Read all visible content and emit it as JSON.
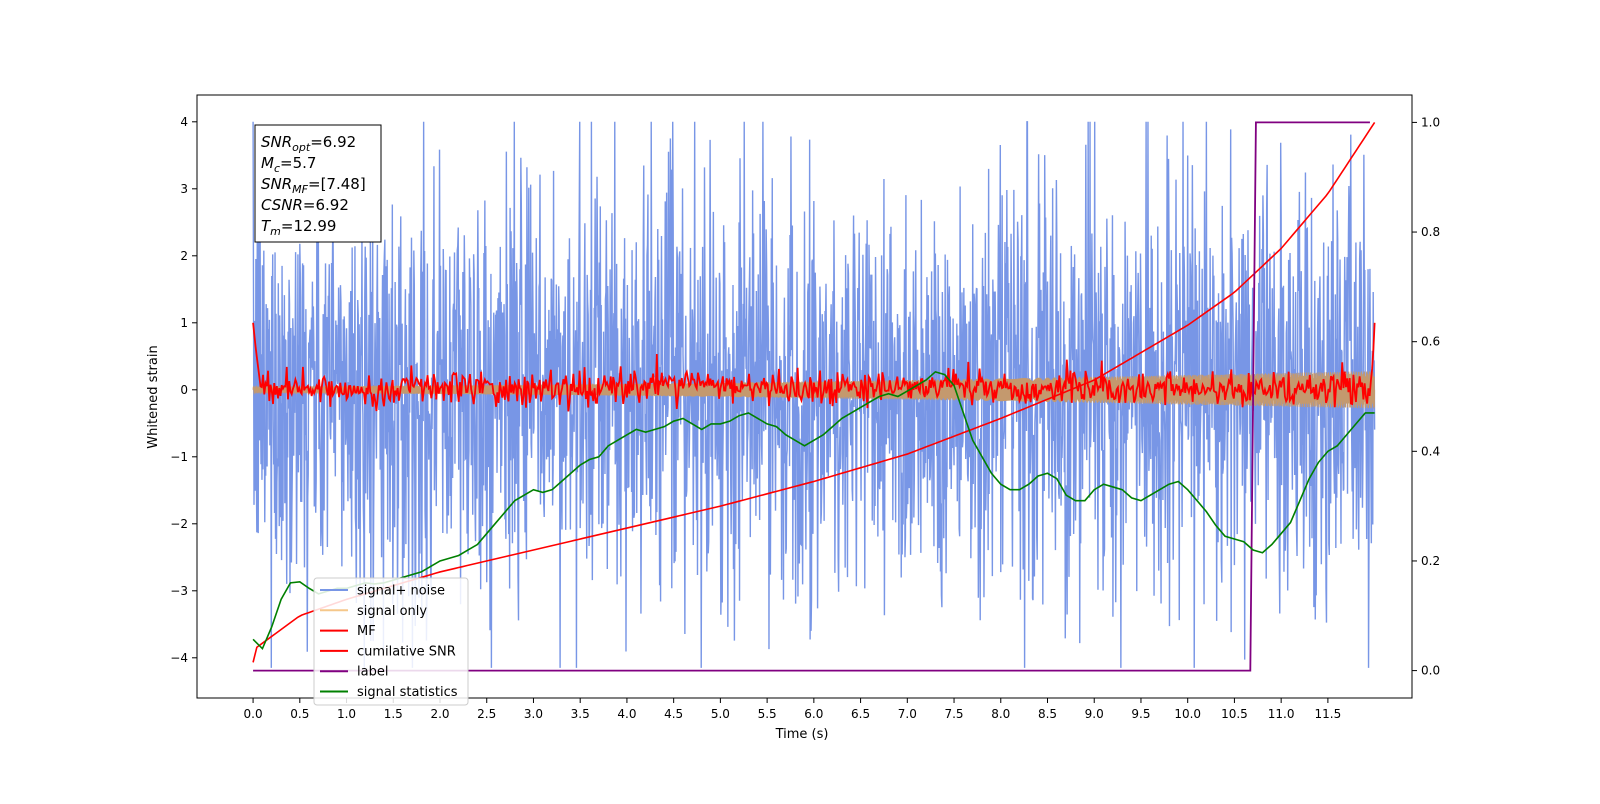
{
  "chart_data": {
    "type": "line",
    "xlabel": "Time (s)",
    "ylabel": "Whitened strain",
    "xlim": [
      -0.6,
      12.4
    ],
    "ylim": [
      -4.6,
      4.4
    ],
    "y2lim": [
      -0.05,
      1.05
    ],
    "xticks": [
      0.0,
      0.5,
      1.0,
      1.5,
      2.0,
      2.5,
      3.0,
      3.5,
      4.0,
      4.5,
      5.0,
      5.5,
      6.0,
      6.5,
      7.0,
      7.5,
      8.0,
      8.5,
      9.0,
      9.5,
      10.0,
      10.5,
      11.0,
      11.5
    ],
    "xtick_labels": [
      "0.0",
      "0.5",
      "1.0",
      "1.5",
      "2.0",
      "2.5",
      "3.0",
      "3.5",
      "4.0",
      "4.5",
      "5.0",
      "5.5",
      "6.0",
      "6.5",
      "7.0",
      "7.5",
      "8.0",
      "8.5",
      "9.0",
      "9.5",
      "10.0",
      "10.5",
      "11.0",
      "11.5"
    ],
    "yticks": [
      4,
      3,
      2,
      1,
      0,
      -1,
      -2,
      -3,
      -4
    ],
    "ytick_labels": [
      "4",
      "3",
      "2",
      "1",
      "0",
      "−1",
      "−2",
      "−3",
      "−4"
    ],
    "y2ticks": [
      1.0,
      0.8,
      0.6,
      0.4,
      0.2,
      0.0
    ],
    "y2tick_labels": [
      "1.0",
      "0.8",
      "0.6",
      "0.4",
      "0.2",
      "0.0"
    ],
    "legend_position": "lower-left",
    "grid": false,
    "annotation": {
      "lines": [
        {
          "base": "SNR",
          "sub": "opt",
          "value": "=6.92"
        },
        {
          "base": "M",
          "sub": "c",
          "value": "=5.7"
        },
        {
          "base": "SNR",
          "sub": "MF",
          "value": "=[7.48]"
        },
        {
          "base": "CSNR",
          "sub": "",
          "value": "=6.92"
        },
        {
          "base": "T",
          "sub": "m",
          "value": "=12.99"
        }
      ]
    },
    "series": [
      {
        "name": "signal+ noise",
        "color": "#7896e6",
        "axis": "left",
        "kind": "noise",
        "x_range": [
          0.0,
          12.0
        ],
        "y_range": [
          -4.15,
          4.0
        ],
        "typical_amplitude": 1.6
      },
      {
        "name": "signal only",
        "color": "#f5c78a",
        "band_color": "#c4996e",
        "axis": "left",
        "kind": "chirp-band",
        "x_range": [
          0.0,
          12.0
        ],
        "amplitude_start": 0.05,
        "amplitude_end": 0.28
      },
      {
        "name": "MF",
        "color": "#ff0000",
        "axis": "left",
        "kind": "mf",
        "x": [
          0.0,
          0.03,
          0.08,
          0.15,
          1.5,
          1.6,
          2.5,
          4.2,
          4.6,
          6.0,
          7.3,
          7.8,
          10.0,
          11.2,
          11.95,
          11.98,
          12.0
        ],
        "y": [
          1.0,
          0.6,
          0.05,
          0.0,
          0.0,
          0.3,
          0.0,
          0.2,
          0.4,
          0.0,
          0.35,
          0.0,
          0.0,
          0.0,
          0.0,
          0.4,
          1.0
        ],
        "jitter": 0.12
      },
      {
        "name": "cumilative SNR",
        "color": "#ff0000",
        "axis": "right",
        "x": [
          0.0,
          0.02,
          0.5,
          1.0,
          2.0,
          3.0,
          4.0,
          5.0,
          6.0,
          7.0,
          8.0,
          9.0,
          10.0,
          10.5,
          11.0,
          11.5,
          12.0
        ],
        "y": [
          0.015,
          0.04,
          0.1,
          0.13,
          0.18,
          0.22,
          0.26,
          0.3,
          0.345,
          0.395,
          0.46,
          0.53,
          0.63,
          0.69,
          0.77,
          0.87,
          1.0
        ]
      },
      {
        "name": "label",
        "color": "#800080",
        "axis": "right",
        "x": [
          0.0,
          10.67,
          10.73,
          11.95
        ],
        "y": [
          0.0,
          0.0,
          1.0,
          1.0
        ]
      },
      {
        "name": "signal statistics",
        "color": "#008000",
        "axis": "right",
        "x": [
          0.0,
          0.1,
          0.2,
          0.3,
          0.4,
          0.5,
          0.6,
          0.7,
          0.8,
          0.9,
          1.0,
          1.1,
          1.2,
          1.3,
          1.4,
          1.5,
          1.6,
          1.7,
          1.8,
          1.9,
          2.0,
          2.1,
          2.2,
          2.3,
          2.4,
          2.5,
          2.6,
          2.7,
          2.8,
          2.9,
          3.0,
          3.1,
          3.2,
          3.3,
          3.4,
          3.5,
          3.6,
          3.7,
          3.8,
          3.9,
          4.0,
          4.1,
          4.2,
          4.3,
          4.4,
          4.5,
          4.6,
          4.7,
          4.8,
          4.9,
          5.0,
          5.1,
          5.2,
          5.3,
          5.4,
          5.5,
          5.6,
          5.7,
          5.8,
          5.9,
          6.0,
          6.1,
          6.2,
          6.3,
          6.4,
          6.5,
          6.6,
          6.7,
          6.8,
          6.9,
          7.0,
          7.1,
          7.2,
          7.3,
          7.4,
          7.5,
          7.6,
          7.7,
          7.8,
          7.9,
          8.0,
          8.1,
          8.2,
          8.3,
          8.4,
          8.5,
          8.6,
          8.7,
          8.8,
          8.9,
          9.0,
          9.1,
          9.2,
          9.3,
          9.4,
          9.5,
          9.6,
          9.7,
          9.8,
          9.9,
          10.0,
          10.1,
          10.2,
          10.3,
          10.4,
          10.5,
          10.6,
          10.7,
          10.8,
          10.9,
          11.0,
          11.1,
          11.2,
          11.3,
          11.4,
          11.5,
          11.6,
          11.7,
          11.8,
          11.9,
          12.0
        ],
        "y": [
          0.057,
          0.04,
          0.08,
          0.13,
          0.16,
          0.162,
          0.15,
          0.14,
          0.145,
          0.15,
          0.15,
          0.155,
          0.16,
          0.158,
          0.16,
          0.165,
          0.17,
          0.175,
          0.18,
          0.19,
          0.2,
          0.205,
          0.21,
          0.22,
          0.23,
          0.25,
          0.27,
          0.29,
          0.31,
          0.32,
          0.33,
          0.325,
          0.33,
          0.345,
          0.36,
          0.375,
          0.385,
          0.39,
          0.41,
          0.42,
          0.43,
          0.44,
          0.435,
          0.44,
          0.445,
          0.455,
          0.46,
          0.45,
          0.44,
          0.45,
          0.45,
          0.455,
          0.465,
          0.47,
          0.46,
          0.45,
          0.445,
          0.43,
          0.42,
          0.41,
          0.42,
          0.43,
          0.445,
          0.46,
          0.47,
          0.48,
          0.49,
          0.5,
          0.505,
          0.5,
          0.51,
          0.52,
          0.53,
          0.545,
          0.54,
          0.52,
          0.47,
          0.42,
          0.39,
          0.36,
          0.34,
          0.33,
          0.33,
          0.34,
          0.355,
          0.36,
          0.35,
          0.32,
          0.31,
          0.31,
          0.33,
          0.34,
          0.335,
          0.33,
          0.315,
          0.31,
          0.32,
          0.33,
          0.34,
          0.345,
          0.33,
          0.31,
          0.29,
          0.265,
          0.245,
          0.24,
          0.235,
          0.22,
          0.215,
          0.23,
          0.25,
          0.27,
          0.31,
          0.35,
          0.38,
          0.4,
          0.41,
          0.43,
          0.45,
          0.47,
          0.47
        ]
      }
    ]
  }
}
